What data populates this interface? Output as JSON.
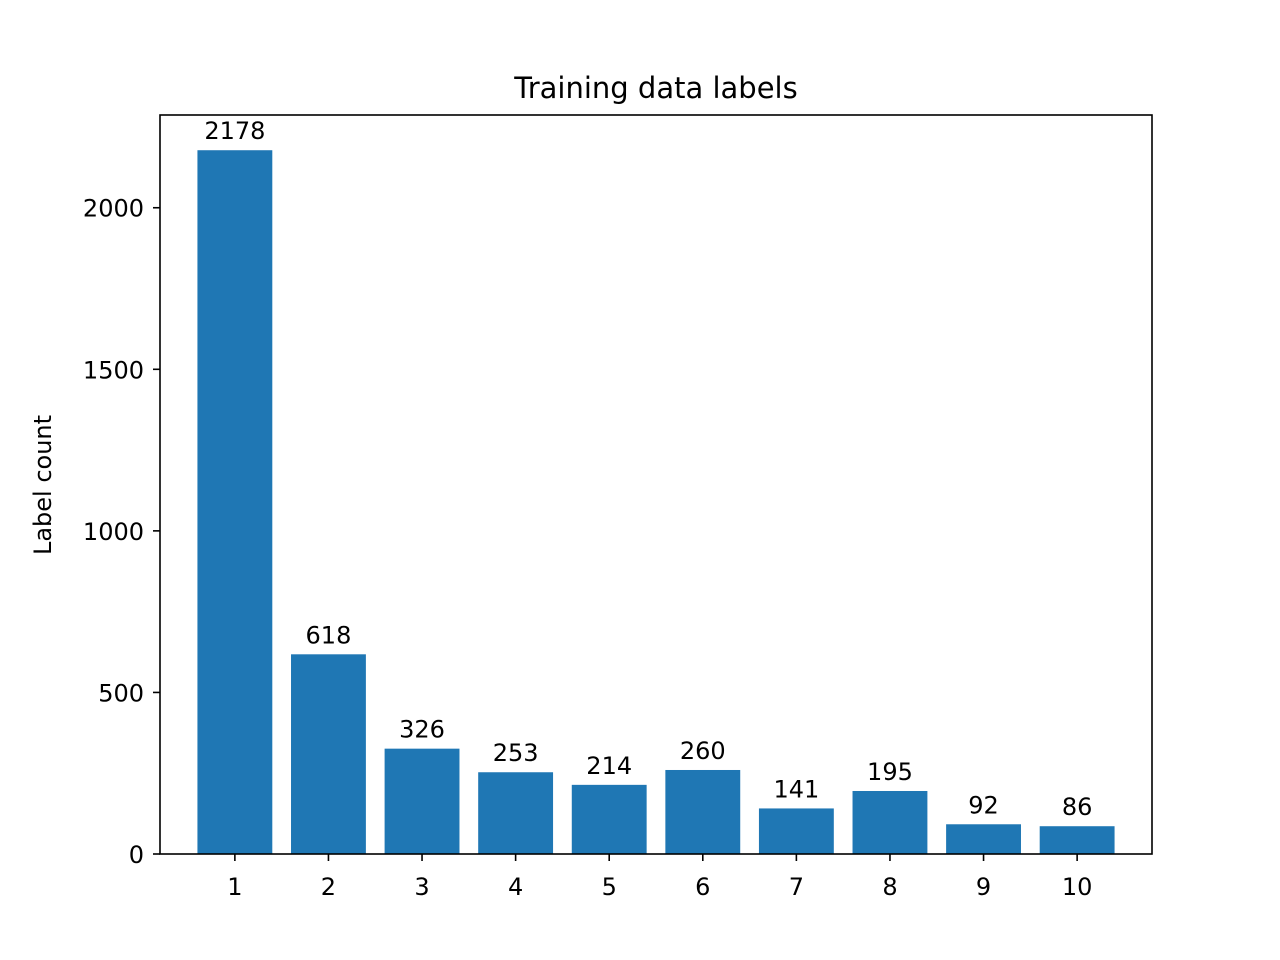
{
  "chart_data": {
    "type": "bar",
    "title": "Training data labels",
    "xlabel": "",
    "ylabel": "Label count",
    "categories": [
      "1",
      "2",
      "3",
      "4",
      "5",
      "6",
      "7",
      "8",
      "9",
      "10"
    ],
    "values": [
      2178,
      618,
      326,
      253,
      214,
      260,
      141,
      195,
      92,
      86
    ],
    "value_labels": [
      "2178",
      "618",
      "326",
      "253",
      "214",
      "260",
      "141",
      "195",
      "92",
      "86"
    ],
    "ylim": [
      0,
      2287
    ],
    "yticks": [
      0,
      500,
      1000,
      1500,
      2000
    ],
    "ytick_labels": [
      "0",
      "500",
      "1000",
      "1500",
      "2000"
    ],
    "grid": false,
    "legend": "none",
    "bar_color": "#1f77b4"
  }
}
